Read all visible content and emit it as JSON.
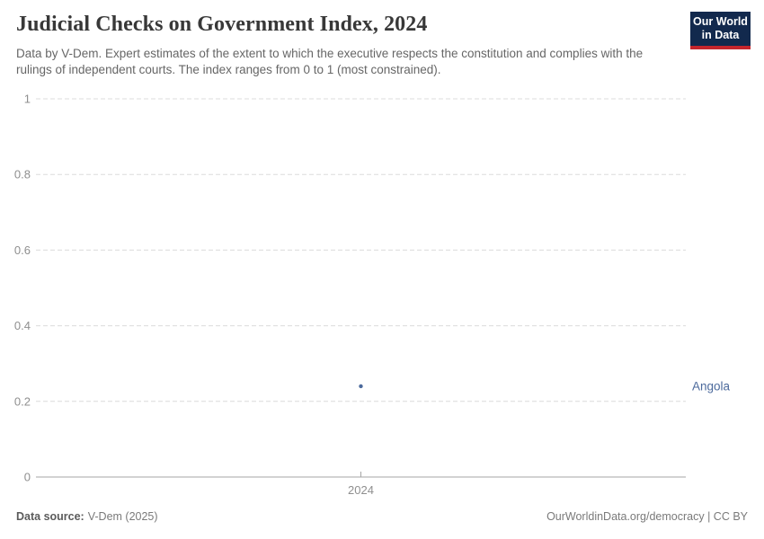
{
  "header": {
    "title": "Judicial Checks on Government Index, 2024",
    "subtitle": "Data by V-Dem. Expert estimates of the extent to which the executive respects the constitution and complies with the rulings of independent courts. The index ranges from 0 to 1 (most constrained).",
    "logo": {
      "line1": "Our World",
      "line2": "in Data"
    }
  },
  "chart_data": {
    "type": "scatter",
    "title": "Judicial Checks on Government Index, 2024",
    "xlabel": "",
    "ylabel": "",
    "x_tick_labels": [
      "2024"
    ],
    "y_ticks": [
      0,
      0.2,
      0.4,
      0.6,
      0.8,
      1
    ],
    "ylim": [
      0,
      1
    ],
    "grid": "horizontal-dashed",
    "legend_position": "right-entity-label",
    "series": [
      {
        "name": "Angola",
        "color": "#4C6A9C",
        "points": [
          {
            "x": 2024,
            "y": 0.24
          }
        ]
      }
    ]
  },
  "footer": {
    "source_label": "Data source:",
    "source_value": "V-Dem (2025)",
    "credit": "OurWorldinData.org/democracy | CC BY"
  },
  "colors": {
    "series_blue": "#4C6A9C",
    "gridline": "#dcdcdc",
    "axis_line": "#a5a5a5",
    "tick_label": "#8f8f8f",
    "logo_bg": "#12294D",
    "logo_stripe": "#C5252C"
  }
}
